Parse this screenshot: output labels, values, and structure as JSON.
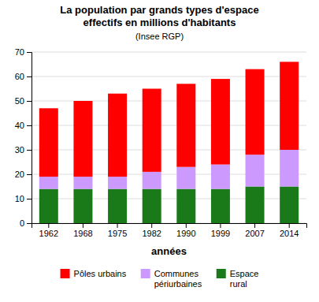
{
  "chart_data": {
    "type": "bar",
    "stacked": true,
    "title": "La population par grands types d'espace\neffectifs en millions d'habitants",
    "subtitle": "(Insee RGP)",
    "x_label": "années",
    "categories": [
      "1962",
      "1968",
      "1975",
      "1982",
      "1990",
      "1999",
      "2007",
      "2014"
    ],
    "series": [
      {
        "name": "Espace\nrural",
        "color": "#1a7a1a",
        "values": [
          14,
          14,
          14,
          14,
          14,
          14,
          15,
          15
        ]
      },
      {
        "name": "Communes\npériurbaines",
        "color": "#cc99ff",
        "values": [
          5,
          5,
          5,
          7,
          9,
          10,
          13,
          15
        ]
      },
      {
        "name": "Pôles urbains",
        "color": "#ff0000",
        "values": [
          28,
          31,
          34,
          34,
          34,
          35,
          35,
          36
        ]
      }
    ],
    "ylim": [
      0,
      70
    ],
    "yticks": [
      0,
      10,
      20,
      30,
      40,
      50,
      60,
      70
    ],
    "grid": true,
    "legend": "bottom"
  }
}
